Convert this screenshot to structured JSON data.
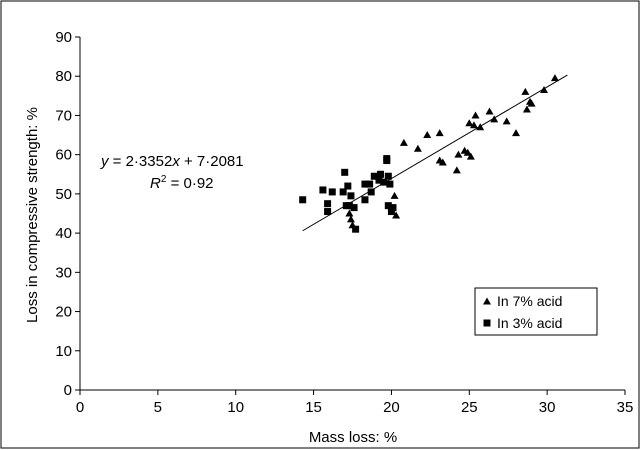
{
  "chart_data": {
    "type": "scatter",
    "title": "",
    "xlabel": "Mass loss: %",
    "ylabel": "Loss in compressive strength: %",
    "xlim": [
      0,
      35
    ],
    "ylim": [
      0,
      90
    ],
    "x_ticks": [
      0,
      5,
      10,
      15,
      20,
      25,
      30,
      35
    ],
    "y_ticks": [
      0,
      10,
      20,
      30,
      40,
      50,
      60,
      70,
      80,
      90
    ],
    "grid": false,
    "legend_position": "bottom-right",
    "series": [
      {
        "name": "In 7% acid",
        "marker": "triangle",
        "color": "#000000",
        "points": [
          [
            17.3,
            45.0
          ],
          [
            17.4,
            43.5
          ],
          [
            17.5,
            42.0
          ],
          [
            20.2,
            49.5
          ],
          [
            20.3,
            44.5
          ],
          [
            20.8,
            63.0
          ],
          [
            21.7,
            61.5
          ],
          [
            22.3,
            65.0
          ],
          [
            23.1,
            65.5
          ],
          [
            23.1,
            58.5
          ],
          [
            23.3,
            58.0
          ],
          [
            24.2,
            56.0
          ],
          [
            24.3,
            60.0
          ],
          [
            24.7,
            61.0
          ],
          [
            24.9,
            60.5
          ],
          [
            25.0,
            68.0
          ],
          [
            25.1,
            59.5
          ],
          [
            25.3,
            67.5
          ],
          [
            25.4,
            70.0
          ],
          [
            25.7,
            67.0
          ],
          [
            26.3,
            71.0
          ],
          [
            26.6,
            69.0
          ],
          [
            27.4,
            68.5
          ],
          [
            28.0,
            65.5
          ],
          [
            28.6,
            76.0
          ],
          [
            28.7,
            71.5
          ],
          [
            28.9,
            73.5
          ],
          [
            29.0,
            73.0
          ],
          [
            29.8,
            76.5
          ],
          [
            30.5,
            79.5
          ]
        ]
      },
      {
        "name": "In 3% acid",
        "marker": "square",
        "color": "#000000",
        "points": [
          [
            14.3,
            48.5
          ],
          [
            15.6,
            51.0
          ],
          [
            15.9,
            47.5
          ],
          [
            15.9,
            45.5
          ],
          [
            16.2,
            50.5
          ],
          [
            16.9,
            50.5
          ],
          [
            17.0,
            55.5
          ],
          [
            17.1,
            47.0
          ],
          [
            17.2,
            52.0
          ],
          [
            17.3,
            47.0
          ],
          [
            17.4,
            49.5
          ],
          [
            17.6,
            46.5
          ],
          [
            17.7,
            41.0
          ],
          [
            18.3,
            48.5
          ],
          [
            18.3,
            52.5
          ],
          [
            18.6,
            52.5
          ],
          [
            18.7,
            50.5
          ],
          [
            18.9,
            54.5
          ],
          [
            19.2,
            53.5
          ],
          [
            19.3,
            55.0
          ],
          [
            19.5,
            53.0
          ],
          [
            19.7,
            58.5
          ],
          [
            19.7,
            59.0
          ],
          [
            19.8,
            54.5
          ],
          [
            19.8,
            47.0
          ],
          [
            19.9,
            52.5
          ],
          [
            20.0,
            45.5
          ],
          [
            20.1,
            46.5
          ]
        ]
      }
    ],
    "trendline": {
      "slope": 2.3352,
      "intercept": 7.2081,
      "x_range": [
        14.3,
        31.3
      ],
      "equation_prefix": "y",
      "equation_rest": " = 2·3352",
      "equation_var": "x",
      "equation_tail": " + 7·2081",
      "r2_label": "R",
      "r2_exp": "2",
      "r2_value": " = 0·92"
    }
  }
}
